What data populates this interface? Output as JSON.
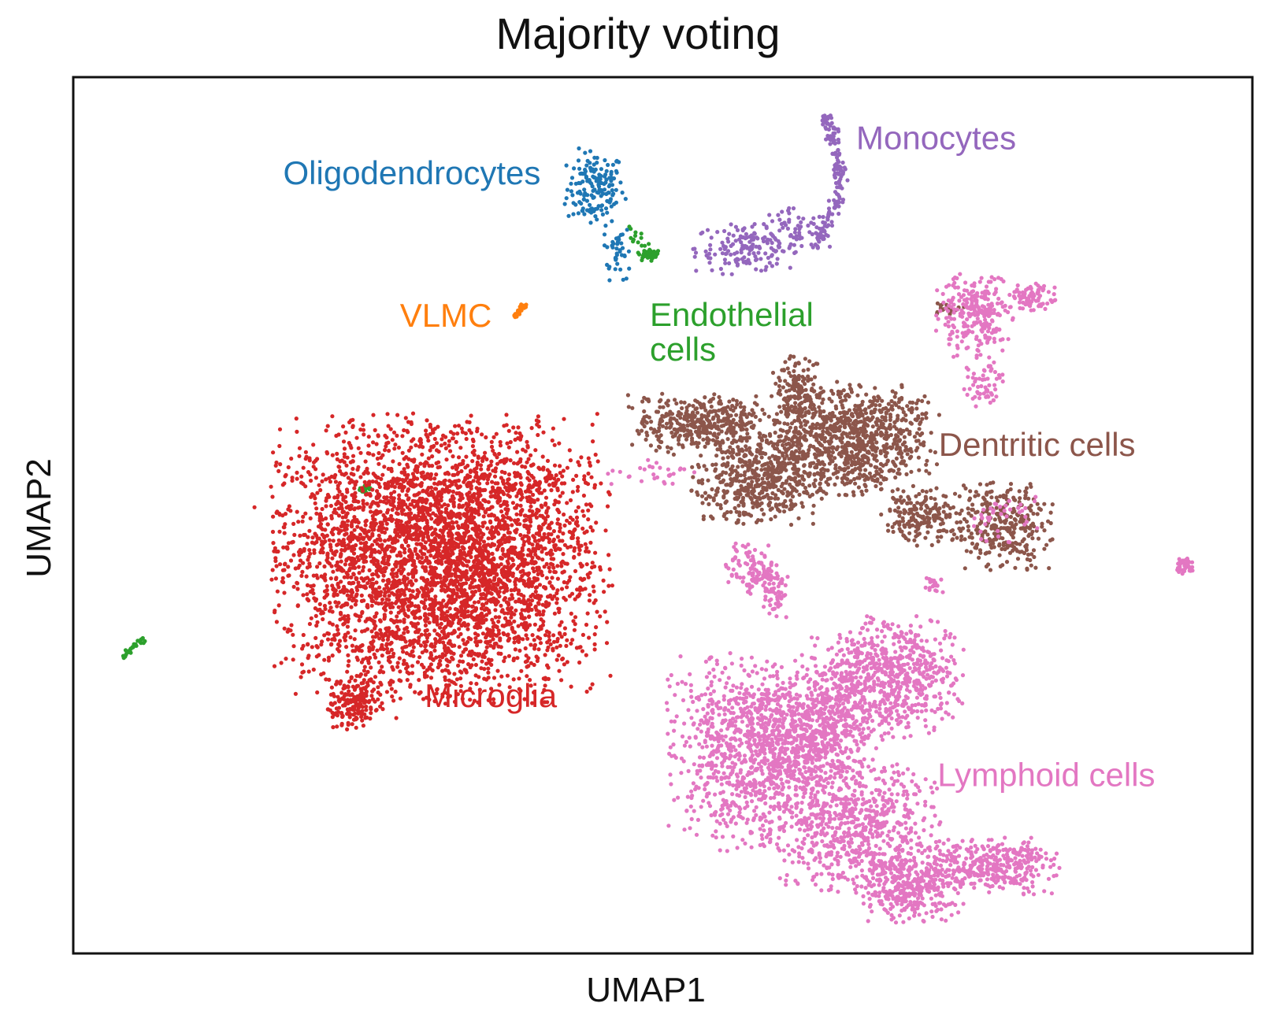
{
  "chart_data": {
    "type": "scatter",
    "title": "Majority voting",
    "xlabel": "UMAP1",
    "ylabel": "UMAP2",
    "xlim": [
      0,
      100
    ],
    "ylim": [
      0,
      100
    ],
    "grid": false,
    "ticks": false,
    "legend": "labels placed directly on clusters",
    "series": [
      {
        "name": "Oligodendrocytes",
        "color": "#1f77b4",
        "label_at": [
          17.8,
          87.8
        ],
        "clusters": [
          {
            "cx": 44.3,
            "cy": 87.3,
            "sx": 1.2,
            "sy": 2.1,
            "n": 160
          },
          {
            "cx": 46.1,
            "cy": 80.2,
            "sx": 0.6,
            "sy": 1.6,
            "n": 40
          }
        ]
      },
      {
        "name": "Monocytes",
        "color": "#9467bd",
        "label_at": [
          66.4,
          91.8
        ],
        "clusters": [
          {
            "cx": 57.2,
            "cy": 80.5,
            "sx": 2.2,
            "sy": 1.4,
            "n": 160
          },
          {
            "cx": 61.5,
            "cy": 82.5,
            "sx": 1.8,
            "sy": 1.2,
            "n": 60
          }
        ],
        "arc": {
          "start": [
            63.0,
            80.5
          ],
          "end": [
            63.7,
            95.7
          ],
          "n": 150
        }
      },
      {
        "name": "Endothelial cells",
        "label_lines": [
          "Endothelial",
          "cells"
        ],
        "color": "#2ca02c",
        "label_at": [
          48.9,
          71.6
        ],
        "clusters": [
          {
            "cx": 48.8,
            "cy": 79.9,
            "sx": 0.6,
            "sy": 0.5,
            "n": 40
          },
          {
            "cx": 47.8,
            "cy": 82.0,
            "sx": 0.4,
            "sy": 0.6,
            "n": 10
          },
          {
            "cx": 24.7,
            "cy": 53.0,
            "sx": 0.25,
            "sy": 0.25,
            "n": 20
          }
        ],
        "streak": {
          "start": [
            4.1,
            33.7
          ],
          "end": [
            5.9,
            36.0
          ],
          "n": 30
        }
      },
      {
        "name": "VLMC",
        "color": "#ff7f0e",
        "label_at": [
          27.7,
          71.5
        ],
        "streak": {
          "start": [
            37.3,
            72.5
          ],
          "end": [
            38.3,
            74.0
          ],
          "n": 25
        }
      },
      {
        "name": "Dentritic cells",
        "color": "#8c564b",
        "label_at": [
          73.4,
          56.8
        ],
        "clusters": [
          {
            "cx": 53.4,
            "cy": 60.4,
            "sx": 3.0,
            "sy": 1.6,
            "n": 400
          },
          {
            "cx": 66.0,
            "cy": 58.7,
            "sx": 3.4,
            "sy": 3.0,
            "n": 900
          },
          {
            "cx": 58.1,
            "cy": 54.0,
            "sx": 2.6,
            "sy": 2.4,
            "n": 500
          },
          {
            "cx": 61.4,
            "cy": 64.0,
            "sx": 1.0,
            "sy": 2.2,
            "n": 150
          },
          {
            "cx": 72.0,
            "cy": 50.0,
            "sx": 1.6,
            "sy": 1.6,
            "n": 180
          },
          {
            "cx": 78.9,
            "cy": 49.0,
            "sx": 2.0,
            "sy": 2.4,
            "n": 300
          },
          {
            "cx": 74.4,
            "cy": 73.6,
            "sx": 0.6,
            "sy": 0.4,
            "n": 20
          }
        ]
      },
      {
        "name": "Microglia",
        "color": "#d62728",
        "label_at": [
          29.8,
          28.1
        ],
        "clusters": [
          {
            "cx": 31.2,
            "cy": 45.1,
            "sx": 6.6,
            "sy": 7.6,
            "n": 4200
          },
          {
            "cx": 24.0,
            "cy": 28.6,
            "sx": 1.1,
            "sy": 1.5,
            "n": 160
          }
        ],
        "streak": {
          "start": [
            37.8,
            52.5
          ],
          "end": [
            40.6,
            54.5
          ],
          "n": 30
        }
      },
      {
        "name": "Lymphoid cells",
        "color": "#e377c2",
        "label_at": [
          73.3,
          19.1
        ],
        "clusters": [
          {
            "cx": 58.2,
            "cy": 23.0,
            "sx": 3.6,
            "sy": 5.2,
            "n": 1100
          },
          {
            "cx": 69.0,
            "cy": 31.6,
            "sx": 3.0,
            "sy": 3.2,
            "n": 700
          },
          {
            "cx": 63.2,
            "cy": 25.9,
            "sx": 2.6,
            "sy": 3.0,
            "n": 450
          },
          {
            "cx": 66.5,
            "cy": 14.5,
            "sx": 3.4,
            "sy": 3.6,
            "n": 650
          },
          {
            "cx": 71.0,
            "cy": 7.9,
            "sx": 2.2,
            "sy": 2.0,
            "n": 350
          },
          {
            "cx": 78.0,
            "cy": 10.0,
            "sx": 2.6,
            "sy": 1.5,
            "n": 350
          },
          {
            "cx": 76.6,
            "cy": 72.8,
            "sx": 1.6,
            "sy": 2.2,
            "n": 250
          },
          {
            "cx": 81.5,
            "cy": 75.0,
            "sx": 1.0,
            "sy": 0.8,
            "n": 80
          },
          {
            "cx": 77.3,
            "cy": 64.9,
            "sx": 0.8,
            "sy": 1.6,
            "n": 60
          },
          {
            "cx": 57.5,
            "cy": 44.0,
            "sx": 1.0,
            "sy": 1.5,
            "n": 100
          },
          {
            "cx": 59.3,
            "cy": 41.4,
            "sx": 0.6,
            "sy": 1.6,
            "n": 70
          },
          {
            "cx": 94.3,
            "cy": 44.3,
            "sx": 0.4,
            "sy": 0.4,
            "n": 35
          },
          {
            "cx": 73.1,
            "cy": 42.0,
            "sx": 0.4,
            "sy": 0.5,
            "n": 20
          },
          {
            "cx": 49.0,
            "cy": 55.0,
            "sx": 1.8,
            "sy": 0.7,
            "n": 30
          },
          {
            "cx": 78.8,
            "cy": 49.5,
            "sx": 1.4,
            "sy": 1.2,
            "n": 40
          }
        ]
      }
    ]
  }
}
